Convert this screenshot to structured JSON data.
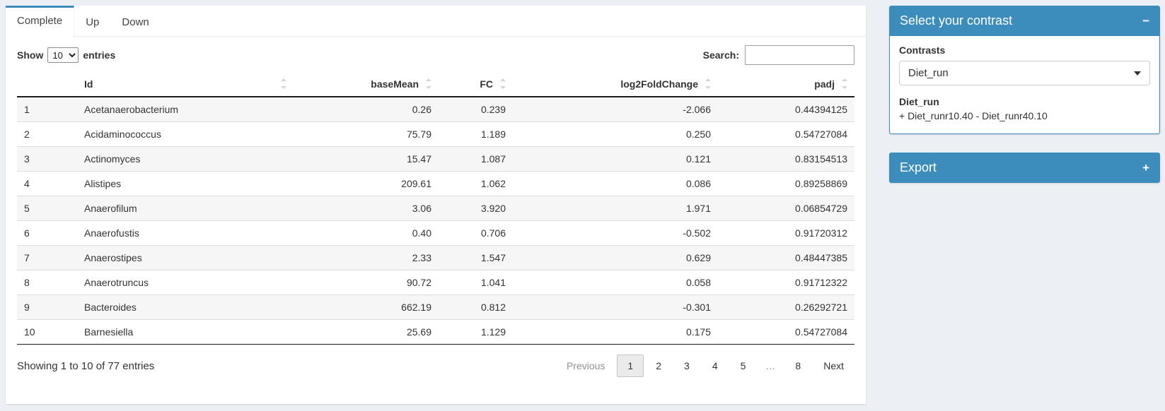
{
  "colors": {
    "accent": "#3c8dbc",
    "page_bg": "#ecf0f5",
    "stripe": "#f6f6f7"
  },
  "tabs": [
    {
      "label": "Complete",
      "active": true
    },
    {
      "label": "Up",
      "active": false
    },
    {
      "label": "Down",
      "active": false
    }
  ],
  "table_controls": {
    "show_label": "Show",
    "page_length": "10",
    "entries_label": "entries",
    "search_label": "Search:",
    "search_value": ""
  },
  "table": {
    "columns": [
      {
        "label": "",
        "sortable": false
      },
      {
        "label": "Id",
        "sortable": true,
        "align": "left"
      },
      {
        "label": "baseMean",
        "sortable": true,
        "align": "right"
      },
      {
        "label": "FC",
        "sortable": true,
        "align": "right"
      },
      {
        "label": "log2FoldChange",
        "sortable": true,
        "align": "right"
      },
      {
        "label": "padj",
        "sortable": true,
        "align": "right"
      }
    ],
    "rows": [
      {
        "index": "1",
        "id": "Acetanaerobacterium",
        "baseMean": "0.26",
        "fc": "0.239",
        "log2fc": "-2.066",
        "padj": "0.44394125"
      },
      {
        "index": "2",
        "id": "Acidaminococcus",
        "baseMean": "75.79",
        "fc": "1.189",
        "log2fc": "0.250",
        "padj": "0.54727084"
      },
      {
        "index": "3",
        "id": "Actinomyces",
        "baseMean": "15.47",
        "fc": "1.087",
        "log2fc": "0.121",
        "padj": "0.83154513"
      },
      {
        "index": "4",
        "id": "Alistipes",
        "baseMean": "209.61",
        "fc": "1.062",
        "log2fc": "0.086",
        "padj": "0.89258869"
      },
      {
        "index": "5",
        "id": "Anaerofilum",
        "baseMean": "3.06",
        "fc": "3.920",
        "log2fc": "1.971",
        "padj": "0.06854729"
      },
      {
        "index": "6",
        "id": "Anaerofustis",
        "baseMean": "0.40",
        "fc": "0.706",
        "log2fc": "-0.502",
        "padj": "0.91720312"
      },
      {
        "index": "7",
        "id": "Anaerostipes",
        "baseMean": "2.33",
        "fc": "1.547",
        "log2fc": "0.629",
        "padj": "0.48447385"
      },
      {
        "index": "8",
        "id": "Anaerotruncus",
        "baseMean": "90.72",
        "fc": "1.041",
        "log2fc": "0.058",
        "padj": "0.91712322"
      },
      {
        "index": "9",
        "id": "Bacteroides",
        "baseMean": "662.19",
        "fc": "0.812",
        "log2fc": "-0.301",
        "padj": "0.26292721"
      },
      {
        "index": "10",
        "id": "Barnesiella",
        "baseMean": "25.69",
        "fc": "1.129",
        "log2fc": "0.175",
        "padj": "0.54727084"
      }
    ]
  },
  "footer": {
    "info": "Showing 1 to 10 of 77 entries",
    "pages": [
      {
        "label": "Previous",
        "state": "disabled"
      },
      {
        "label": "1",
        "state": "current"
      },
      {
        "label": "2"
      },
      {
        "label": "3"
      },
      {
        "label": "4"
      },
      {
        "label": "5"
      },
      {
        "label": "…",
        "state": "ellipsis"
      },
      {
        "label": "8"
      },
      {
        "label": "Next"
      }
    ]
  },
  "contrast_panel": {
    "title": "Select your contrast",
    "collapse_icon": "−",
    "contrasts_label": "Contrasts",
    "selected_contrast": "Diet_run",
    "contrast_name": "Diet_run",
    "contrast_formula": "+ Diet_runr10.40 - Diet_runr40.10"
  },
  "export_panel": {
    "title": "Export",
    "expand_icon": "+"
  }
}
